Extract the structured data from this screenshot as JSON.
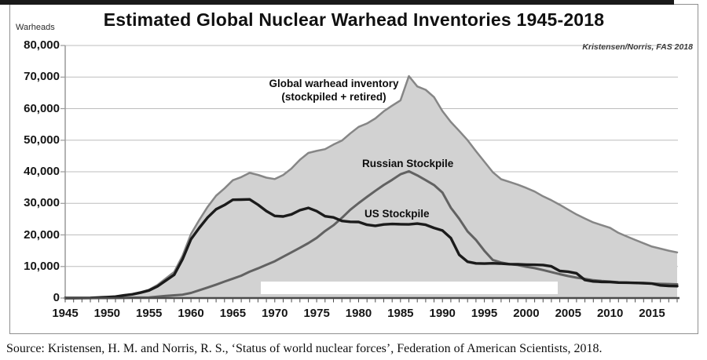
{
  "chart_data": {
    "type": "area",
    "title": "Estimated Global Nuclear Warhead Inventories 1945-2018",
    "ylabel": "Warheads",
    "credit": "Kristensen/Norris, FAS 2018",
    "xlim": [
      1945,
      2018
    ],
    "ylim": [
      0,
      80000
    ],
    "grid": "horizontal",
    "x_ticks": [
      {
        "label": "1945",
        "value": 1945
      },
      {
        "label": "1950",
        "value": 1950
      },
      {
        "label": "1955",
        "value": 1955
      },
      {
        "label": "1960",
        "value": 1960
      },
      {
        "label": "1965",
        "value": 1965
      },
      {
        "label": "1970",
        "value": 1970
      },
      {
        "label": "1975",
        "value": 1975
      },
      {
        "label": "1980",
        "value": 1980
      },
      {
        "label": "1985",
        "value": 1985
      },
      {
        "label": "1990",
        "value": 1990
      },
      {
        "label": "1995",
        "value": 1995
      },
      {
        "label": "2000",
        "value": 2000
      },
      {
        "label": "2005",
        "value": 2005
      },
      {
        "label": "2010",
        "value": 2010
      },
      {
        "label": "2015",
        "value": 2015
      }
    ],
    "y_ticks": [
      {
        "label": "80,000",
        "value": 80000
      },
      {
        "label": "70,000",
        "value": 70000
      },
      {
        "label": "60,000",
        "value": 60000
      },
      {
        "label": "50,000",
        "value": 50000
      },
      {
        "label": "40,000",
        "value": 40000
      },
      {
        "label": "30,000",
        "value": 30000
      },
      {
        "label": "20,000",
        "value": 20000
      },
      {
        "label": "10,000",
        "value": 10000
      },
      {
        "label": "0",
        "value": 0
      }
    ],
    "x": [
      1945,
      1946,
      1947,
      1948,
      1949,
      1950,
      1951,
      1952,
      1953,
      1954,
      1955,
      1956,
      1957,
      1958,
      1959,
      1960,
      1961,
      1962,
      1963,
      1964,
      1965,
      1966,
      1967,
      1968,
      1969,
      1970,
      1971,
      1972,
      1973,
      1974,
      1975,
      1976,
      1977,
      1978,
      1979,
      1980,
      1981,
      1982,
      1983,
      1984,
      1985,
      1986,
      1987,
      1988,
      1989,
      1990,
      1991,
      1992,
      1993,
      1994,
      1995,
      1996,
      1997,
      1998,
      1999,
      2000,
      2001,
      2002,
      2003,
      2004,
      2005,
      2006,
      2007,
      2008,
      2009,
      2010,
      2011,
      2012,
      2013,
      2014,
      2015,
      2016,
      2017,
      2018
    ],
    "series": [
      {
        "name": "Global warhead inventory (stockpiled + retired)",
        "style": "area",
        "fill": "#d2d2d2",
        "stroke": "#868686",
        "values": [
          2,
          9,
          13,
          50,
          171,
          304,
          463,
          891,
          1289,
          1853,
          2632,
          4128,
          6213,
          8239,
          13383,
          20285,
          24746,
          28908,
          32417,
          34731,
          37315,
          38311,
          39641,
          39007,
          38137,
          37698,
          38969,
          41041,
          43797,
          45969,
          46621,
          47166,
          48633,
          49858,
          52120,
          54213,
          55304,
          56885,
          59156,
          60937,
          62612,
          70306,
          67038,
          65956,
          63646,
          59239,
          55772,
          52972,
          50008,
          46542,
          43200,
          39900,
          37635,
          36803,
          35914,
          34892,
          33745,
          32229,
          30984,
          29529,
          28012,
          26476,
          25192,
          23938,
          23069,
          22225,
          20655,
          19500,
          18400,
          17350,
          16300,
          15650,
          15000,
          14465
        ]
      },
      {
        "name": "Russian Stockpile",
        "style": "line",
        "stroke": "#626262",
        "values": [
          0,
          0,
          0,
          0,
          1,
          5,
          25,
          50,
          120,
          150,
          200,
          426,
          660,
          869,
          1060,
          1605,
          2471,
          3322,
          4238,
          5221,
          6129,
          7089,
          8339,
          9399,
          10538,
          11643,
          13092,
          14478,
          15915,
          17385,
          19055,
          21205,
          23044,
          25393,
          27935,
          30062,
          32049,
          33952,
          35804,
          37431,
          39197,
          40159,
          38859,
          37333,
          35805,
          33417,
          28595,
          25155,
          21101,
          18399,
          14978,
          12085,
          11264,
          10764,
          10451,
          9896,
          9471,
          8876,
          8226,
          7545,
          6966,
          6448,
          6078,
          5649,
          5397,
          5215,
          5000,
          4900,
          4800,
          4700,
          4600,
          4500,
          4450,
          4350
        ]
      },
      {
        "name": "US Stockpile",
        "style": "line",
        "stroke": "#1b1b1b",
        "values": [
          2,
          9,
          13,
          50,
          170,
          299,
          438,
          841,
          1169,
          1703,
          2422,
          3692,
          5543,
          7345,
          12298,
          18638,
          22229,
          25540,
          28133,
          29463,
          31139,
          31175,
          31255,
          29561,
          27552,
          26008,
          25830,
          26516,
          27835,
          28537,
          27519,
          25914,
          25542,
          24418,
          24138,
          24104,
          23208,
          22886,
          23305,
          23459,
          23368,
          23317,
          23575,
          23205,
          22217,
          21392,
          19008,
          13708,
          11511,
          10979,
          10904,
          11011,
          10903,
          10732,
          10685,
          10577,
          10526,
          10457,
          10027,
          8570,
          8360,
          7853,
          5709,
          5273,
          5113,
          5066,
          4897,
          4881,
          4804,
          4717,
          4571,
          4018,
          3822,
          3785
        ]
      }
    ],
    "annotations": {
      "global_line1": "Global warhead inventory",
      "global_line2": "(stockpiled + retired)",
      "russian": "Russian Stockpile",
      "us": "US Stockpile"
    }
  },
  "footer": {
    "source": "Source: Kristensen, H. M. and Norris, R. S., ‘Status of world nuclear forces’, Federation of American Scientists, 2018."
  }
}
